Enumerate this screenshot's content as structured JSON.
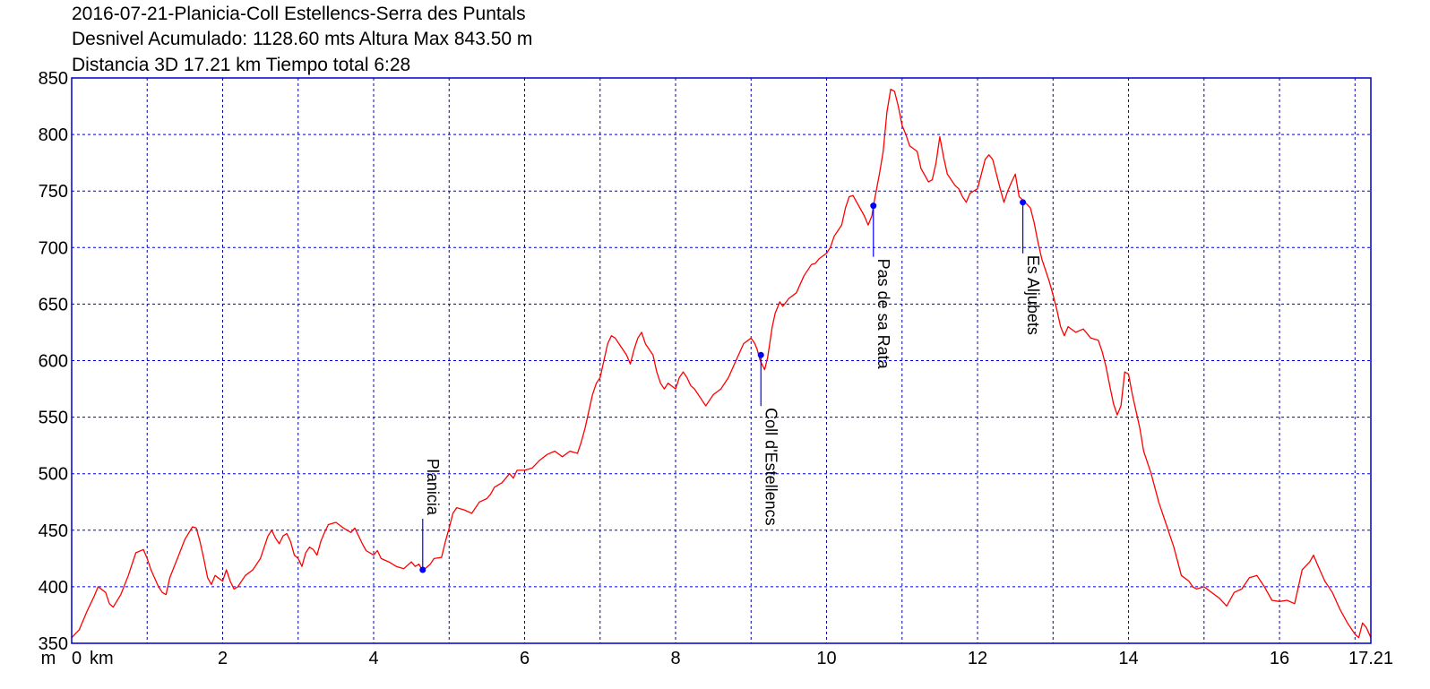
{
  "header": {
    "line1": "2016-07-21-Planicia-Coll Estellencs-Serra des Puntals",
    "line2": "Desnivel Acumulado: 1128.60 mts  Altura Max 843.50 m",
    "line3": "Distancia 3D 17.21 km  Tiempo total 6:28"
  },
  "chart_data": {
    "type": "line",
    "x_unit_label": "km",
    "y_unit_label": "m",
    "xlim": [
      0,
      17.21
    ],
    "ylim": [
      350,
      850
    ],
    "x_ticks": [
      {
        "v": 0,
        "label": "0"
      },
      {
        "v": 2,
        "label": "2"
      },
      {
        "v": 4,
        "label": "4"
      },
      {
        "v": 6,
        "label": "6"
      },
      {
        "v": 8,
        "label": "8"
      },
      {
        "v": 10,
        "label": "10"
      },
      {
        "v": 12,
        "label": "12"
      },
      {
        "v": 14,
        "label": "14"
      },
      {
        "v": 16,
        "label": "16"
      },
      {
        "v": 17.21,
        "label": "17.21"
      }
    ],
    "x_grid": [
      1,
      2,
      3,
      4,
      5,
      6,
      7,
      8,
      9,
      10,
      11,
      12,
      13,
      14,
      15,
      16,
      17
    ],
    "y_ticks": [
      350,
      400,
      450,
      500,
      550,
      600,
      650,
      700,
      750,
      800,
      850
    ],
    "grid": true,
    "colors": {
      "profile": "#ff0000",
      "grid": "#0000cc",
      "waypoint": "#0000ff"
    },
    "series": [
      {
        "points": [
          [
            0,
            355
          ],
          [
            0.1,
            362
          ],
          [
            0.2,
            378
          ],
          [
            0.3,
            392
          ],
          [
            0.35,
            400
          ],
          [
            0.45,
            395
          ],
          [
            0.5,
            385
          ],
          [
            0.55,
            382
          ],
          [
            0.65,
            393
          ],
          [
            0.75,
            410
          ],
          [
            0.85,
            430
          ],
          [
            0.95,
            433
          ],
          [
            1.0,
            425
          ],
          [
            1.05,
            415
          ],
          [
            1.15,
            400
          ],
          [
            1.2,
            395
          ],
          [
            1.25,
            393
          ],
          [
            1.3,
            408
          ],
          [
            1.4,
            425
          ],
          [
            1.5,
            442
          ],
          [
            1.6,
            453
          ],
          [
            1.65,
            452
          ],
          [
            1.7,
            440
          ],
          [
            1.75,
            425
          ],
          [
            1.8,
            408
          ],
          [
            1.85,
            402
          ],
          [
            1.9,
            410
          ],
          [
            2.0,
            405
          ],
          [
            2.05,
            415
          ],
          [
            2.1,
            405
          ],
          [
            2.15,
            398
          ],
          [
            2.2,
            400
          ],
          [
            2.3,
            410
          ],
          [
            2.4,
            415
          ],
          [
            2.5,
            425
          ],
          [
            2.6,
            445
          ],
          [
            2.65,
            450
          ],
          [
            2.7,
            443
          ],
          [
            2.75,
            438
          ],
          [
            2.8,
            445
          ],
          [
            2.85,
            447
          ],
          [
            2.9,
            440
          ],
          [
            2.95,
            428
          ],
          [
            3.0,
            425
          ],
          [
            3.05,
            418
          ],
          [
            3.1,
            430
          ],
          [
            3.15,
            435
          ],
          [
            3.2,
            433
          ],
          [
            3.25,
            428
          ],
          [
            3.3,
            440
          ],
          [
            3.35,
            448
          ],
          [
            3.4,
            455
          ],
          [
            3.5,
            457
          ],
          [
            3.6,
            452
          ],
          [
            3.7,
            448
          ],
          [
            3.75,
            452
          ],
          [
            3.8,
            445
          ],
          [
            3.85,
            438
          ],
          [
            3.9,
            432
          ],
          [
            4.0,
            428
          ],
          [
            4.05,
            432
          ],
          [
            4.1,
            425
          ],
          [
            4.2,
            422
          ],
          [
            4.3,
            418
          ],
          [
            4.4,
            416
          ],
          [
            4.5,
            422
          ],
          [
            4.55,
            418
          ],
          [
            4.6,
            420
          ],
          [
            4.65,
            414
          ],
          [
            4.7,
            417
          ],
          [
            4.75,
            420
          ],
          [
            4.8,
            425
          ],
          [
            4.9,
            426
          ],
          [
            4.95,
            440
          ],
          [
            5.0,
            452
          ],
          [
            5.05,
            465
          ],
          [
            5.1,
            470
          ],
          [
            5.2,
            468
          ],
          [
            5.3,
            465
          ],
          [
            5.35,
            470
          ],
          [
            5.4,
            475
          ],
          [
            5.5,
            478
          ],
          [
            5.55,
            482
          ],
          [
            5.6,
            488
          ],
          [
            5.65,
            490
          ],
          [
            5.7,
            492
          ],
          [
            5.8,
            500
          ],
          [
            5.85,
            496
          ],
          [
            5.9,
            503
          ],
          [
            6.0,
            503
          ],
          [
            6.1,
            505
          ],
          [
            6.2,
            512
          ],
          [
            6.3,
            517
          ],
          [
            6.4,
            520
          ],
          [
            6.5,
            515
          ],
          [
            6.6,
            520
          ],
          [
            6.7,
            518
          ],
          [
            6.75,
            528
          ],
          [
            6.8,
            540
          ],
          [
            6.85,
            555
          ],
          [
            6.9,
            570
          ],
          [
            6.95,
            580
          ],
          [
            7.0,
            585
          ],
          [
            7.05,
            600
          ],
          [
            7.1,
            615
          ],
          [
            7.15,
            622
          ],
          [
            7.2,
            620
          ],
          [
            7.25,
            615
          ],
          [
            7.3,
            610
          ],
          [
            7.35,
            605
          ],
          [
            7.4,
            597
          ],
          [
            7.45,
            610
          ],
          [
            7.5,
            620
          ],
          [
            7.55,
            625
          ],
          [
            7.6,
            615
          ],
          [
            7.7,
            605
          ],
          [
            7.75,
            590
          ],
          [
            7.8,
            580
          ],
          [
            7.85,
            575
          ],
          [
            7.9,
            580
          ],
          [
            8.0,
            575
          ],
          [
            8.05,
            585
          ],
          [
            8.1,
            590
          ],
          [
            8.15,
            585
          ],
          [
            8.2,
            578
          ],
          [
            8.25,
            575
          ],
          [
            8.3,
            570
          ],
          [
            8.35,
            565
          ],
          [
            8.4,
            560
          ],
          [
            8.45,
            565
          ],
          [
            8.5,
            570
          ],
          [
            8.6,
            575
          ],
          [
            8.7,
            585
          ],
          [
            8.8,
            600
          ],
          [
            8.9,
            615
          ],
          [
            9.0,
            620
          ],
          [
            9.05,
            615
          ],
          [
            9.08,
            610
          ],
          [
            9.12,
            600
          ],
          [
            9.18,
            592
          ],
          [
            9.22,
            603
          ],
          [
            9.28,
            630
          ],
          [
            9.32,
            642
          ],
          [
            9.38,
            652
          ],
          [
            9.42,
            648
          ],
          [
            9.5,
            655
          ],
          [
            9.6,
            660
          ],
          [
            9.7,
            675
          ],
          [
            9.8,
            685
          ],
          [
            9.85,
            686
          ],
          [
            9.9,
            690
          ],
          [
            10.0,
            695
          ],
          [
            10.05,
            700
          ],
          [
            10.1,
            710
          ],
          [
            10.15,
            715
          ],
          [
            10.2,
            720
          ],
          [
            10.25,
            735
          ],
          [
            10.3,
            745
          ],
          [
            10.35,
            746
          ],
          [
            10.4,
            740
          ],
          [
            10.5,
            728
          ],
          [
            10.55,
            720
          ],
          [
            10.6,
            728
          ],
          [
            10.62,
            737
          ],
          [
            10.7,
            765
          ],
          [
            10.75,
            785
          ],
          [
            10.8,
            820
          ],
          [
            10.85,
            840
          ],
          [
            10.9,
            838
          ],
          [
            10.95,
            825
          ],
          [
            11.0,
            808
          ],
          [
            11.05,
            800
          ],
          [
            11.1,
            790
          ],
          [
            11.2,
            785
          ],
          [
            11.25,
            770
          ],
          [
            11.35,
            758
          ],
          [
            11.4,
            760
          ],
          [
            11.45,
            775
          ],
          [
            11.5,
            798
          ],
          [
            11.55,
            780
          ],
          [
            11.6,
            765
          ],
          [
            11.7,
            755
          ],
          [
            11.75,
            752
          ],
          [
            11.8,
            745
          ],
          [
            11.85,
            740
          ],
          [
            11.9,
            748
          ],
          [
            12.0,
            752
          ],
          [
            12.05,
            765
          ],
          [
            12.1,
            778
          ],
          [
            12.15,
            782
          ],
          [
            12.2,
            778
          ],
          [
            12.25,
            765
          ],
          [
            12.3,
            752
          ],
          [
            12.35,
            740
          ],
          [
            12.4,
            750
          ],
          [
            12.45,
            758
          ],
          [
            12.5,
            765
          ],
          [
            12.55,
            745
          ],
          [
            12.6,
            742
          ],
          [
            12.7,
            735
          ],
          [
            12.75,
            722
          ],
          [
            12.8,
            705
          ],
          [
            12.85,
            690
          ],
          [
            12.9,
            680
          ],
          [
            12.95,
            670
          ],
          [
            13.0,
            658
          ],
          [
            13.05,
            645
          ],
          [
            13.1,
            630
          ],
          [
            13.15,
            622
          ],
          [
            13.2,
            630
          ],
          [
            13.3,
            625
          ],
          [
            13.4,
            628
          ],
          [
            13.5,
            620
          ],
          [
            13.6,
            618
          ],
          [
            13.65,
            608
          ],
          [
            13.7,
            595
          ],
          [
            13.75,
            578
          ],
          [
            13.8,
            562
          ],
          [
            13.85,
            552
          ],
          [
            13.9,
            560
          ],
          [
            13.95,
            590
          ],
          [
            14.0,
            588
          ],
          [
            14.05,
            570
          ],
          [
            14.1,
            555
          ],
          [
            14.15,
            540
          ],
          [
            14.2,
            520
          ],
          [
            14.3,
            500
          ],
          [
            14.4,
            475
          ],
          [
            14.5,
            455
          ],
          [
            14.6,
            435
          ],
          [
            14.7,
            410
          ],
          [
            14.8,
            405
          ],
          [
            14.85,
            400
          ],
          [
            14.9,
            398
          ],
          [
            15.0,
            400
          ],
          [
            15.1,
            395
          ],
          [
            15.2,
            390
          ],
          [
            15.3,
            383
          ],
          [
            15.4,
            395
          ],
          [
            15.5,
            398
          ],
          [
            15.6,
            408
          ],
          [
            15.7,
            410
          ],
          [
            15.8,
            400
          ],
          [
            15.9,
            388
          ],
          [
            16.0,
            387
          ],
          [
            16.1,
            388
          ],
          [
            16.2,
            385
          ],
          [
            16.3,
            415
          ],
          [
            16.4,
            422
          ],
          [
            16.45,
            428
          ],
          [
            16.5,
            420
          ],
          [
            16.6,
            405
          ],
          [
            16.7,
            395
          ],
          [
            16.8,
            380
          ],
          [
            16.9,
            368
          ],
          [
            17.0,
            358
          ],
          [
            17.05,
            355
          ],
          [
            17.1,
            368
          ],
          [
            17.15,
            364
          ],
          [
            17.21,
            355
          ]
        ]
      }
    ],
    "waypoints": [
      {
        "name": "Planicia",
        "x": 4.65,
        "y": 415
      },
      {
        "name": "Coll d'Estellencs",
        "x": 9.13,
        "y": 605
      },
      {
        "name": "Pas de sa Rata",
        "x": 10.62,
        "y": 737
      },
      {
        "name": "Es Aljubets",
        "x": 12.6,
        "y": 740
      }
    ]
  }
}
